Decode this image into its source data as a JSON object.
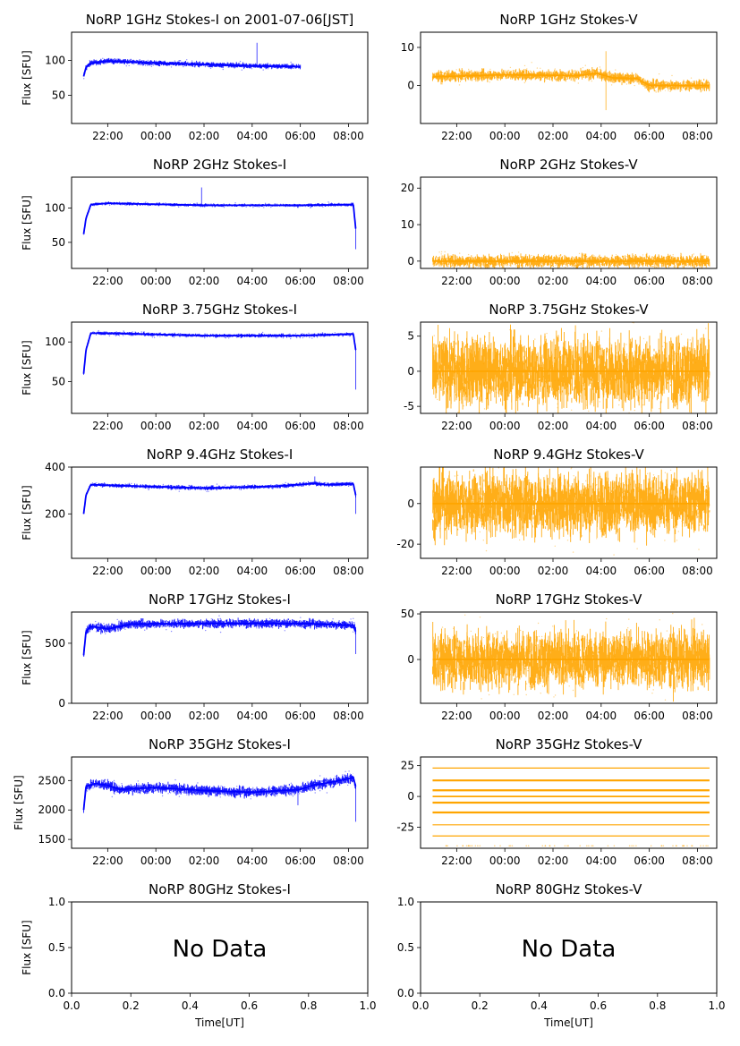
{
  "colors": {
    "stokes_i": "#0000ff",
    "stokes_v": "#ffa500"
  },
  "common": {
    "ylabel": "Flux [SFU]",
    "xlabel": "Time[UT]",
    "time_ticks": [
      "22:00",
      "00:00",
      "02:00",
      "04:00",
      "06:00",
      "08:00"
    ],
    "no_data_label": "No Data"
  },
  "chart_data": [
    {
      "type": "scatter",
      "id": "1ghz-i",
      "title": "NoRP 1GHz Stokes-I on 2001-07-06[JST]",
      "series_color": "stokes_i",
      "ylim": [
        10,
        140
      ],
      "yticks": [
        50,
        100
      ],
      "has_ylabel": true,
      "x_range_hours": [
        20.5,
        32.8
      ],
      "data_x_hours": [
        21.0,
        30.0
      ],
      "profile": [
        [
          21.0,
          77
        ],
        [
          21.1,
          90
        ],
        [
          21.3,
          96
        ],
        [
          22.0,
          99
        ],
        [
          24.0,
          96
        ],
        [
          28.0,
          92
        ],
        [
          30.0,
          91
        ]
      ],
      "spikes": [
        [
          28.2,
          125
        ]
      ],
      "noise": 2.5
    },
    {
      "type": "scatter",
      "id": "1ghz-v",
      "title": "NoRP 1GHz Stokes-V",
      "series_color": "stokes_v",
      "ylim": [
        -10,
        14
      ],
      "yticks": [
        0,
        10
      ],
      "has_ylabel": false,
      "x_range_hours": [
        20.5,
        32.8
      ],
      "data_x_hours": [
        21.0,
        32.5
      ],
      "profile": [
        [
          21.0,
          2.3
        ],
        [
          24.0,
          2.8
        ],
        [
          27.0,
          2.6
        ],
        [
          27.8,
          3.2
        ],
        [
          28.5,
          2.0
        ],
        [
          29.5,
          1.8
        ],
        [
          30.0,
          0.0
        ],
        [
          32.5,
          0.0
        ]
      ],
      "spikes": [
        [
          28.2,
          9.0
        ],
        [
          28.2,
          -6.5
        ]
      ],
      "noise": 1.0
    },
    {
      "type": "scatter",
      "id": "2ghz-i",
      "title": "NoRP 2GHz Stokes-I",
      "series_color": "stokes_i",
      "ylim": [
        12,
        145
      ],
      "yticks": [
        50,
        100
      ],
      "has_ylabel": true,
      "x_range_hours": [
        20.5,
        32.8
      ],
      "data_x_hours": [
        21.0,
        32.3
      ],
      "profile": [
        [
          21.0,
          62
        ],
        [
          21.1,
          85
        ],
        [
          21.3,
          105
        ],
        [
          22.0,
          107
        ],
        [
          26.0,
          104
        ],
        [
          30.0,
          104
        ],
        [
          32.2,
          105
        ],
        [
          32.3,
          70
        ]
      ],
      "spikes": [
        [
          32.3,
          40
        ],
        [
          25.9,
          130
        ]
      ],
      "noise": 1.5
    },
    {
      "type": "scatter",
      "id": "2ghz-v",
      "title": "NoRP 2GHz Stokes-V",
      "series_color": "stokes_v",
      "ylim": [
        -2,
        23
      ],
      "yticks": [
        0,
        10,
        20
      ],
      "has_ylabel": false,
      "x_range_hours": [
        20.5,
        32.8
      ],
      "data_x_hours": [
        21.0,
        32.5
      ],
      "profile": [
        [
          21.0,
          0.0
        ],
        [
          32.5,
          0.0
        ]
      ],
      "spikes": [],
      "noise": 1.2
    },
    {
      "type": "scatter",
      "id": "375ghz-i",
      "title": "NoRP 3.75GHz Stokes-I",
      "series_color": "stokes_i",
      "ylim": [
        10,
        125
      ],
      "yticks": [
        50,
        100
      ],
      "has_ylabel": true,
      "x_range_hours": [
        20.5,
        32.8
      ],
      "data_x_hours": [
        21.0,
        32.3
      ],
      "profile": [
        [
          21.0,
          60
        ],
        [
          21.1,
          90
        ],
        [
          21.3,
          111
        ],
        [
          22.0,
          111
        ],
        [
          26.0,
          108
        ],
        [
          30.0,
          108
        ],
        [
          32.2,
          110
        ],
        [
          32.3,
          90
        ]
      ],
      "spikes": [
        [
          32.3,
          40
        ]
      ],
      "noise": 1.5
    },
    {
      "type": "scatter",
      "id": "375ghz-v",
      "title": "NoRP 3.75GHz Stokes-V",
      "series_color": "stokes_v",
      "ylim": [
        -6,
        7
      ],
      "yticks": [
        -5,
        0,
        5
      ],
      "has_ylabel": false,
      "x_range_hours": [
        20.5,
        32.8
      ],
      "data_x_hours": [
        21.0,
        32.5
      ],
      "profile": [
        [
          21.0,
          0.0
        ],
        [
          32.5,
          0.0
        ]
      ],
      "spikes": [],
      "noise": 3.5
    },
    {
      "type": "scatter",
      "id": "94ghz-i",
      "title": "NoRP 9.4GHz Stokes-I",
      "series_color": "stokes_i",
      "ylim": [
        10,
        400
      ],
      "yticks": [
        200,
        400
      ],
      "has_ylabel": true,
      "x_range_hours": [
        20.5,
        32.8
      ],
      "data_x_hours": [
        21.0,
        32.3
      ],
      "profile": [
        [
          21.0,
          200
        ],
        [
          21.1,
          280
        ],
        [
          21.3,
          325
        ],
        [
          22.0,
          322
        ],
        [
          26.0,
          310
        ],
        [
          29.0,
          318
        ],
        [
          30.6,
          330
        ],
        [
          31.0,
          325
        ],
        [
          32.2,
          328
        ],
        [
          32.3,
          280
        ]
      ],
      "spikes": [
        [
          30.6,
          360
        ],
        [
          32.3,
          200
        ]
      ],
      "noise": 6
    },
    {
      "type": "scatter",
      "id": "94ghz-v",
      "title": "NoRP 9.4GHz Stokes-V",
      "series_color": "stokes_v",
      "ylim": [
        -27,
        18
      ],
      "yticks": [
        -20,
        0
      ],
      "has_ylabel": false,
      "x_range_hours": [
        20.5,
        32.8
      ],
      "data_x_hours": [
        21.0,
        32.5
      ],
      "profile": [
        [
          21.0,
          0.0
        ],
        [
          32.5,
          0.0
        ]
      ],
      "spikes": [],
      "noise": 11
    },
    {
      "type": "scatter",
      "id": "17ghz-i",
      "title": "NoRP 17GHz Stokes-I",
      "series_color": "stokes_i",
      "ylim": [
        0,
        760
      ],
      "yticks": [
        0,
        500
      ],
      "has_ylabel": true,
      "x_range_hours": [
        20.5,
        32.8
      ],
      "data_x_hours": [
        21.0,
        32.3
      ],
      "profile": [
        [
          21.0,
          400
        ],
        [
          21.1,
          600
        ],
        [
          21.3,
          640
        ],
        [
          22.0,
          620
        ],
        [
          23.0,
          660
        ],
        [
          26.0,
          665
        ],
        [
          30.0,
          665
        ],
        [
          32.2,
          650
        ],
        [
          32.3,
          600
        ]
      ],
      "spikes": [
        [
          32.3,
          410
        ]
      ],
      "noise": 25
    },
    {
      "type": "scatter",
      "id": "17ghz-v",
      "title": "NoRP 17GHz Stokes-V",
      "series_color": "stokes_v",
      "ylim": [
        -48,
        52
      ],
      "yticks": [
        0,
        50
      ],
      "has_ylabel": false,
      "x_range_hours": [
        20.5,
        32.8
      ],
      "data_x_hours": [
        21.0,
        32.5
      ],
      "profile": [
        [
          21.0,
          0.0
        ],
        [
          32.5,
          0.0
        ]
      ],
      "spikes": [],
      "noise": 22
    },
    {
      "type": "scatter",
      "id": "35ghz-i",
      "title": "NoRP 35GHz Stokes-I",
      "series_color": "stokes_i",
      "ylim": [
        1350,
        2900
      ],
      "yticks": [
        1500,
        2000,
        2500
      ],
      "has_ylabel": true,
      "x_range_hours": [
        20.5,
        32.8
      ],
      "data_x_hours": [
        21.0,
        32.3
      ],
      "profile": [
        [
          21.0,
          2000
        ],
        [
          21.1,
          2400
        ],
        [
          21.5,
          2450
        ],
        [
          22.0,
          2420
        ],
        [
          22.5,
          2350
        ],
        [
          24.0,
          2380
        ],
        [
          26.0,
          2330
        ],
        [
          28.0,
          2300
        ],
        [
          30.0,
          2350
        ],
        [
          30.5,
          2420
        ],
        [
          31.0,
          2450
        ],
        [
          32.2,
          2550
        ],
        [
          32.3,
          2400
        ]
      ],
      "spikes": [
        [
          29.9,
          2080
        ],
        [
          32.3,
          1800
        ]
      ],
      "noise": 60
    },
    {
      "type": "scatter",
      "id": "35ghz-v",
      "title": "NoRP 35GHz Stokes-V",
      "series_color": "stokes_v",
      "ylim": [
        -42,
        32
      ],
      "yticks": [
        -25,
        0,
        25
      ],
      "has_ylabel": false,
      "x_range_hours": [
        20.5,
        32.8
      ],
      "data_x_hours": [
        21.0,
        32.5
      ],
      "levels": [
        23,
        13,
        5,
        -5,
        -13,
        -23,
        -32
      ],
      "profile": [
        [
          21.0,
          0.0
        ],
        [
          32.5,
          0.0
        ]
      ],
      "spikes": [],
      "noise": 0
    },
    {
      "type": "empty",
      "id": "80ghz-i",
      "title": "NoRP 80GHz Stokes-I",
      "xlim": [
        0,
        1
      ],
      "ylim": [
        0,
        1
      ],
      "xticks": [
        "0.0",
        "0.2",
        "0.4",
        "0.6",
        "0.8",
        "1.0"
      ],
      "yticks": [
        "0.0",
        "0.5",
        "1.0"
      ],
      "has_ylabel": true
    },
    {
      "type": "empty",
      "id": "80ghz-v",
      "title": "NoRP 80GHz Stokes-V",
      "xlim": [
        0,
        1
      ],
      "ylim": [
        0,
        1
      ],
      "xticks": [
        "0.0",
        "0.2",
        "0.4",
        "0.6",
        "0.8",
        "1.0"
      ],
      "yticks": [
        "0.0",
        "0.5",
        "1.0"
      ],
      "has_ylabel": false
    }
  ]
}
